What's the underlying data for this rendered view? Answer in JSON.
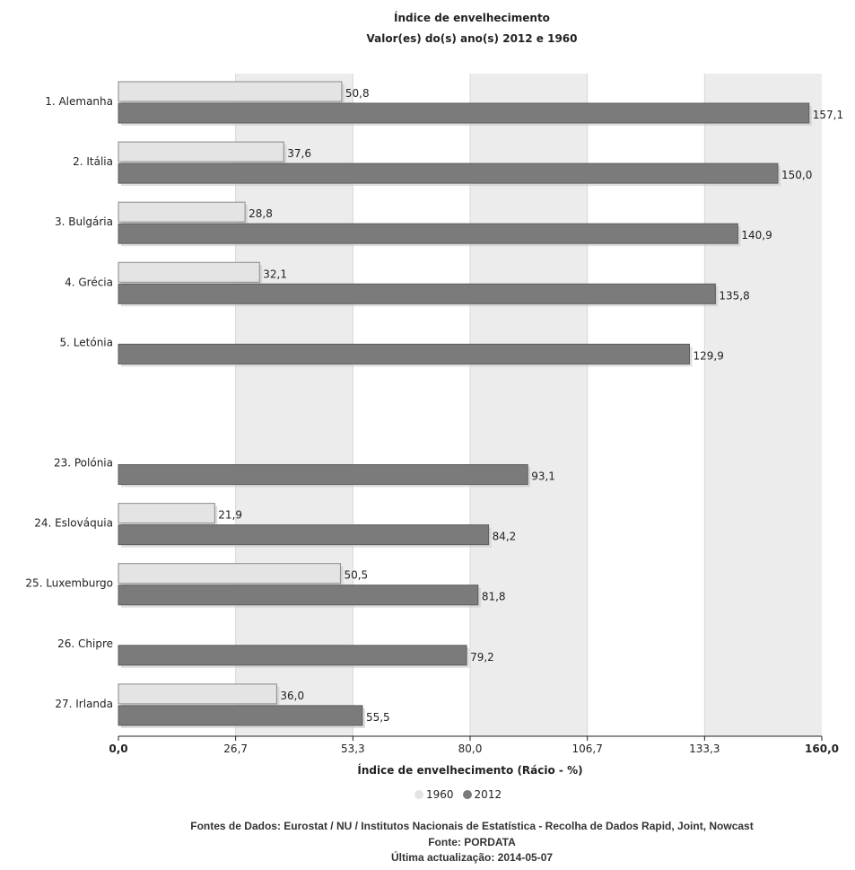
{
  "chart_data": {
    "type": "bar",
    "orientation": "horizontal",
    "title": "Índice de envelhecimento",
    "subtitle": "Valor(es) do(s) ano(s) 2012 e 1960",
    "xlabel": "Índice de envelhecimento (Rácio - %)",
    "xlim": [
      0,
      160
    ],
    "x_ticks": [
      "0,0",
      "26,7",
      "53,3",
      "80,0",
      "106,7",
      "133,3",
      "160,0"
    ],
    "grid": "alternating vertical bands",
    "legend_position": "bottom",
    "categories": [
      "1. Alemanha",
      "2. Itália",
      "3. Bulgária",
      "4. Grécia",
      "5. Letónia",
      "",
      "23. Polónia",
      "24. Eslováquia",
      "25. Luxemburgo",
      "26. Chipre",
      "27. Irlanda"
    ],
    "series": [
      {
        "name": "1960",
        "color": "#e4e4e4",
        "values": [
          50.8,
          37.6,
          28.8,
          32.1,
          null,
          null,
          null,
          21.9,
          50.5,
          null,
          36.0
        ],
        "labels": [
          "50,8",
          "37,6",
          "28,8",
          "32,1",
          null,
          null,
          null,
          "21,9",
          "50,5",
          null,
          "36,0"
        ]
      },
      {
        "name": "2012",
        "color": "#7b7b7b",
        "values": [
          157.1,
          150.0,
          140.9,
          135.8,
          129.9,
          null,
          93.1,
          84.2,
          81.8,
          79.2,
          55.5
        ],
        "labels": [
          "157,1",
          "150,0",
          "140,9",
          "135,8",
          "129,9",
          null,
          "93,1",
          "84,2",
          "81,8",
          "79,2",
          "55,5"
        ]
      }
    ]
  },
  "footer": {
    "sources": "Fontes de Dados: Eurostat / NU / Institutos Nacionais de Estatística - Recolha de Dados Rapid, Joint, Nowcast",
    "source": "Fonte: PORDATA",
    "updated": "Última actualização: 2014-05-07"
  }
}
